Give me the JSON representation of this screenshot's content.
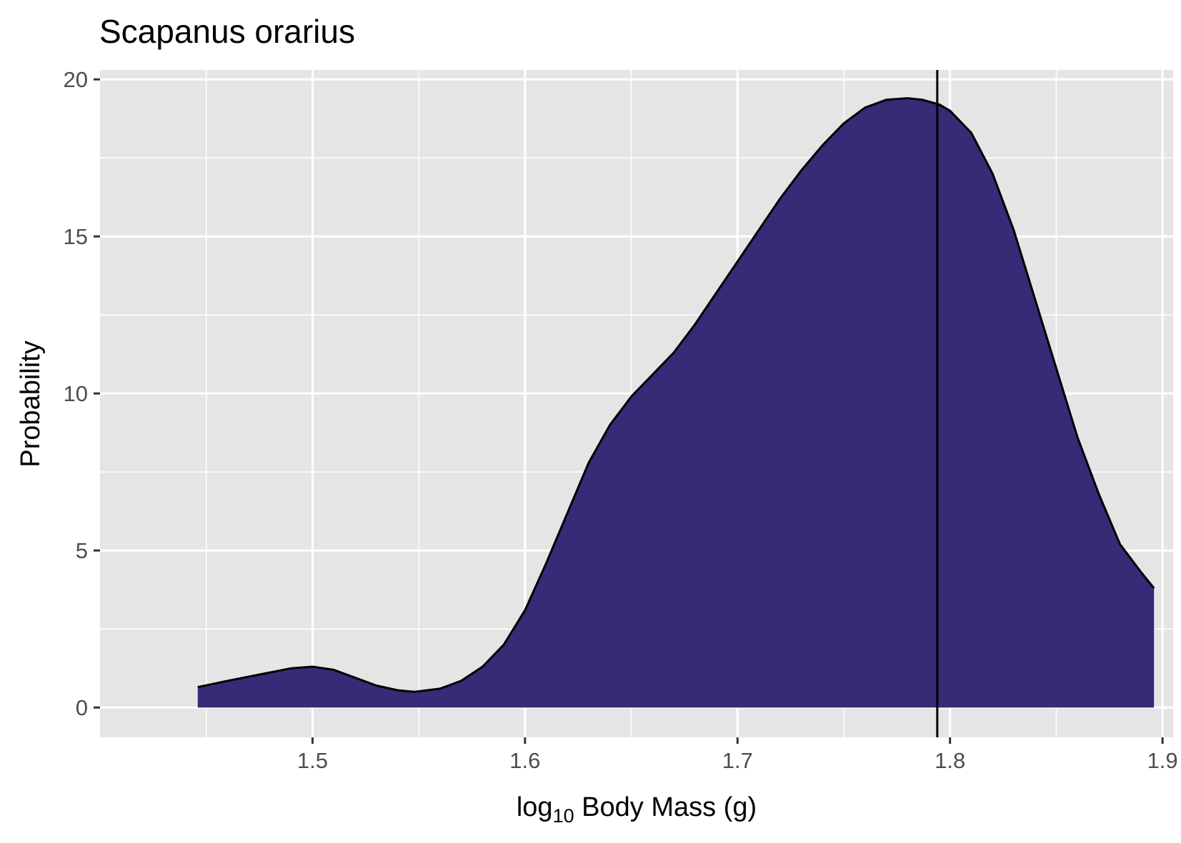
{
  "chart_data": {
    "type": "area",
    "title": "Scapanus orarius",
    "xlabel": {
      "prefix": "log",
      "subscript": "10",
      "suffix": " Body Mass (g)"
    },
    "ylabel": "Probability",
    "xlim": [
      1.4,
      1.905
    ],
    "ylim": [
      -0.95,
      20.3
    ],
    "x_ticks": [
      1.5,
      1.6,
      1.7,
      1.8,
      1.9
    ],
    "x_tick_labels": [
      "1.5",
      "1.6",
      "1.7",
      "1.8",
      "1.9"
    ],
    "y_ticks": [
      0,
      5,
      10,
      15,
      20
    ],
    "y_tick_labels": [
      "0",
      "5",
      "10",
      "15",
      "20"
    ],
    "grid": true,
    "legend": "none",
    "vline_x": 1.794,
    "series": [
      {
        "fill": "#372a77",
        "stroke": "#000000",
        "x": [
          1.446,
          1.46,
          1.475,
          1.49,
          1.5,
          1.51,
          1.52,
          1.53,
          1.54,
          1.548,
          1.56,
          1.57,
          1.58,
          1.59,
          1.6,
          1.61,
          1.62,
          1.63,
          1.64,
          1.65,
          1.66,
          1.67,
          1.68,
          1.69,
          1.7,
          1.71,
          1.72,
          1.73,
          1.74,
          1.75,
          1.76,
          1.77,
          1.78,
          1.787,
          1.795,
          1.8,
          1.81,
          1.82,
          1.83,
          1.84,
          1.85,
          1.86,
          1.87,
          1.88,
          1.89,
          1.896
        ],
        "y": [
          0.65,
          0.85,
          1.05,
          1.25,
          1.3,
          1.2,
          0.95,
          0.7,
          0.55,
          0.5,
          0.6,
          0.85,
          1.3,
          2.0,
          3.1,
          4.6,
          6.2,
          7.8,
          9.0,
          9.9,
          10.6,
          11.3,
          12.2,
          13.2,
          14.2,
          15.2,
          16.2,
          17.1,
          17.9,
          18.6,
          19.1,
          19.35,
          19.4,
          19.35,
          19.2,
          19.0,
          18.3,
          17.0,
          15.2,
          13.0,
          10.8,
          8.6,
          6.8,
          5.2,
          4.3,
          3.8
        ]
      }
    ]
  }
}
